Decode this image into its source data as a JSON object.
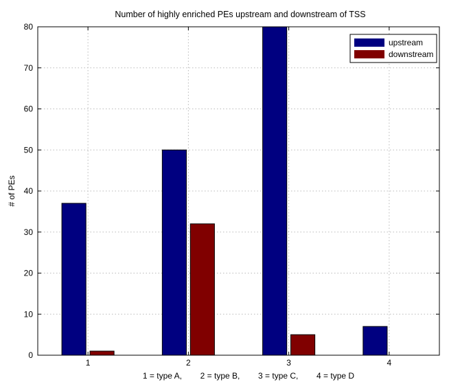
{
  "chart_data": {
    "type": "bar",
    "title": "Number of highly enriched PEs upstream and downstream of TSS",
    "xlabel": "1 = type A,        2 = type B,        3 = type C,        4 = type D",
    "ylabel": "# of PEs",
    "categories": [
      "1",
      "2",
      "3",
      "4"
    ],
    "series": [
      {
        "name": "upstream",
        "values": [
          37,
          50,
          80,
          7
        ],
        "color": "#000080"
      },
      {
        "name": "downstream",
        "values": [
          1,
          32,
          5,
          0
        ],
        "color": "#800000"
      }
    ],
    "ylim": [
      0,
      80
    ],
    "yticks": [
      0,
      10,
      20,
      30,
      40,
      50,
      60,
      70,
      80
    ],
    "xlim": [
      0.5,
      4.5
    ],
    "grid": true,
    "legend_position": "top-right"
  }
}
